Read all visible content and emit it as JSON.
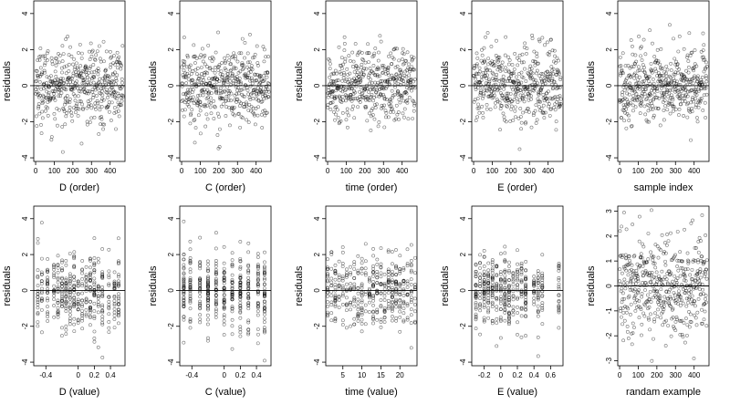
{
  "chart_data": [
    {
      "type": "scatter",
      "id": "p1",
      "xlabel": "D (order)",
      "ylabel": "residuals",
      "xlim": [
        -10,
        480
      ],
      "ylim": [
        -4.2,
        4.7
      ],
      "xticks": [
        0,
        100,
        200,
        300,
        400
      ],
      "yticks": [
        -4,
        -2,
        0,
        2,
        4
      ],
      "hline": 0,
      "x_kind": "index",
      "n": 470
    },
    {
      "type": "scatter",
      "id": "p2",
      "xlabel": "C (order)",
      "ylabel": "residuals",
      "xlim": [
        -10,
        480
      ],
      "ylim": [
        -4.2,
        4.7
      ],
      "xticks": [
        0,
        100,
        200,
        300,
        400
      ],
      "yticks": [
        -4,
        -2,
        0,
        2,
        4
      ],
      "hline": 0,
      "x_kind": "index",
      "n": 470
    },
    {
      "type": "scatter",
      "id": "p3",
      "xlabel": "time (order)",
      "ylabel": "residuals",
      "xlim": [
        -10,
        480
      ],
      "ylim": [
        -4.2,
        4.7
      ],
      "xticks": [
        0,
        100,
        200,
        300,
        400
      ],
      "yticks": [
        -4,
        -2,
        0,
        2,
        4
      ],
      "hline": 0,
      "x_kind": "index",
      "n": 470
    },
    {
      "type": "scatter",
      "id": "p4",
      "xlabel": "E (order)",
      "ylabel": "residuals",
      "xlim": [
        -10,
        480
      ],
      "ylim": [
        -4.2,
        4.7
      ],
      "xticks": [
        0,
        100,
        200,
        300,
        400
      ],
      "yticks": [
        -4,
        -2,
        0,
        2,
        4
      ],
      "hline": 0,
      "x_kind": "index",
      "n": 470
    },
    {
      "type": "scatter",
      "id": "p5",
      "xlabel": "sample index",
      "ylabel": "residuals",
      "xlim": [
        -10,
        480
      ],
      "ylim": [
        -4.2,
        4.7
      ],
      "xticks": [
        0,
        100,
        200,
        300,
        400
      ],
      "yticks": [
        -4,
        -2,
        0,
        2,
        4
      ],
      "hline": 0,
      "x_kind": "index",
      "n": 470
    },
    {
      "type": "scatter",
      "id": "p6",
      "xlabel": "D (value)",
      "ylabel": "residuals",
      "xlim": [
        -0.55,
        0.58
      ],
      "ylim": [
        -4.2,
        4.7
      ],
      "xticks": [
        -0.4,
        0.0,
        0.2,
        0.4
      ],
      "yticks": [
        -4,
        -2,
        0,
        2,
        4
      ],
      "hline": 0,
      "x_kind": "discrete",
      "x_levels": [
        -0.5,
        -0.45,
        -0.38,
        -0.3,
        -0.25,
        -0.2,
        -0.15,
        -0.1,
        -0.05,
        0.0,
        0.05,
        0.1,
        0.15,
        0.2,
        0.25,
        0.3,
        0.38,
        0.45,
        0.5
      ],
      "n": 420
    },
    {
      "type": "scatter",
      "id": "p7",
      "xlabel": "C (value)",
      "ylabel": "residuals",
      "xlim": [
        -0.55,
        0.58
      ],
      "ylim": [
        -4.2,
        4.7
      ],
      "xticks": [
        -0.4,
        0.0,
        0.2,
        0.4
      ],
      "yticks": [
        -4,
        -2,
        0,
        2,
        4
      ],
      "hline": 0,
      "x_kind": "discrete",
      "x_levels": [
        -0.5,
        -0.42,
        -0.3,
        -0.2,
        -0.1,
        0.0,
        0.1,
        0.2,
        0.3,
        0.42,
        0.5
      ],
      "n": 420
    },
    {
      "type": "scatter",
      "id": "p8",
      "xlabel": "time (value)",
      "ylabel": "residuals",
      "xlim": [
        0.5,
        24.5
      ],
      "ylim": [
        -4.2,
        4.7
      ],
      "xticks": [
        5,
        10,
        15,
        20
      ],
      "yticks": [
        -4,
        -2,
        0,
        2,
        4
      ],
      "hline": 0,
      "x_kind": "discrete",
      "x_levels": [
        1,
        2,
        3,
        4,
        5,
        6,
        7,
        8,
        9,
        10,
        11,
        12,
        13,
        14,
        15,
        16,
        17,
        18,
        19,
        20,
        21,
        22,
        23,
        24
      ],
      "n": 420
    },
    {
      "type": "scatter",
      "id": "p9",
      "xlabel": "E (value)",
      "ylabel": "residuals",
      "xlim": [
        -0.35,
        0.75
      ],
      "ylim": [
        -4.2,
        4.7
      ],
      "xticks": [
        -0.2,
        0.0,
        0.2,
        0.4,
        0.6
      ],
      "yticks": [
        -4,
        -2,
        0,
        2,
        4
      ],
      "hline": 0,
      "x_kind": "discrete",
      "x_levels": [
        -0.3,
        -0.25,
        -0.2,
        -0.15,
        -0.1,
        -0.05,
        0.0,
        0.05,
        0.1,
        0.15,
        0.2,
        0.25,
        0.3,
        0.4,
        0.45,
        0.5,
        0.7
      ],
      "n": 420
    },
    {
      "type": "scatter",
      "id": "p10",
      "xlabel": "randam example",
      "ylabel": "residuals",
      "xlim": [
        -10,
        480
      ],
      "ylim": [
        -3.2,
        3.2
      ],
      "xticks": [
        0,
        100,
        200,
        300,
        400
      ],
      "yticks": [
        -3,
        -2,
        -1,
        0,
        1,
        2,
        3
      ],
      "hline": 0,
      "x_kind": "index",
      "n": 470
    }
  ]
}
